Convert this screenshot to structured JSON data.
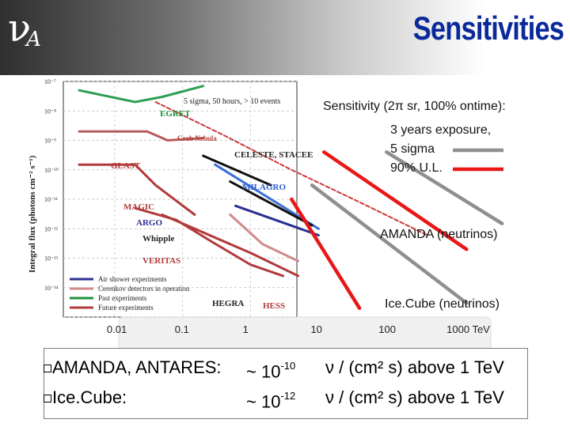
{
  "header": {
    "logo_symbol": "ν",
    "logo_subscript": "A",
    "title": "Sensitivities"
  },
  "chart_data": {
    "type": "line",
    "title": "",
    "xlabel": "",
    "ylabel": "Integral flux (photons cm⁻² s⁻¹)",
    "x_scale": "log",
    "y_scale": "log",
    "xlim": [
      0.003,
      10000
    ],
    "ylim": [
      1e-15,
      1e-07
    ],
    "x_ticks": [
      "0.01",
      "0.1",
      "1",
      "10",
      "100",
      "1000 TeV"
    ],
    "y_ticks": [
      "10⁻⁷",
      "10⁻⁸",
      "10⁻⁹",
      "10⁻¹⁰",
      "10⁻¹¹",
      "10⁻¹²",
      "10⁻¹³",
      "10⁻¹⁴"
    ],
    "inner_annotation": "5 sigma, 50 hours, > 10 events",
    "experiment_labels": [
      "EGRET",
      "Crab Nebula",
      "GLAST",
      "CELESTE, STACEE",
      "MILAGRO",
      "MAGIC",
      "ARGO",
      "Whipple",
      "VERITAS",
      "HEGRA",
      "HESS"
    ],
    "legend": [
      {
        "label": "Air shower experiments",
        "color": "#2b2f8f"
      },
      {
        "label": "Cerenkov detectors in operation",
        "color": "#d18a8a"
      },
      {
        "label": "Past experiments",
        "color": "#1f8f3a"
      },
      {
        "label": "Future experiments",
        "color": "#b23a3a"
      }
    ],
    "series": [
      {
        "name": "EGRET",
        "color": "#2e9e55",
        "x": [
          0.003,
          0.02,
          0.05,
          0.2
        ],
        "y": [
          5e-08,
          2e-08,
          3e-08,
          7e-08
        ]
      },
      {
        "name": "GLAST",
        "color": "#b85a5a",
        "x": [
          0.003,
          0.03,
          0.06,
          0.2
        ],
        "y": [
          2e-09,
          2e-09,
          1e-09,
          1.2e-09
        ]
      },
      {
        "name": "Crab Nebula",
        "color": "#cc3a3a",
        "x": [
          0.04,
          0.4,
          4,
          40,
          400
        ],
        "y": [
          2e-08,
          1.5e-09,
          1e-10,
          8e-12,
          6e-13
        ]
      },
      {
        "name": "CELESTE, STACEE",
        "color": "#111111",
        "x": [
          0.2,
          2
        ],
        "y": [
          3e-10,
          3e-11
        ]
      },
      {
        "name": "MILAGRO",
        "color": "#3a6fd6",
        "x": [
          0.3,
          10
        ],
        "y": [
          1.5e-10,
          1e-12
        ]
      },
      {
        "name": "MAGIC",
        "color": "#b23a3a",
        "x": [
          0.003,
          0.02,
          0.04,
          0.15
        ],
        "y": [
          1.5e-10,
          1.5e-10,
          3e-11,
          3e-12
        ]
      },
      {
        "name": "ARGO",
        "color": "#2b2f8f",
        "x": [
          0.6,
          10
        ],
        "y": [
          6e-12,
          6e-13
        ]
      },
      {
        "name": "Whipple",
        "color": "#111111",
        "x": [
          0.5,
          8
        ],
        "y": [
          4e-11,
          1.3e-12
        ]
      },
      {
        "name": "VERITAS",
        "color": "#b23a3a",
        "x": [
          0.02,
          0.08,
          0.25,
          1,
          3
        ],
        "y": [
          5e-12,
          2e-12,
          4e-13,
          6e-14,
          2.5e-14
        ]
      },
      {
        "name": "HEGRA",
        "color": "#d18a8a",
        "x": [
          0.5,
          1.5,
          5
        ],
        "y": [
          3e-12,
          3e-13,
          8e-14
        ]
      },
      {
        "name": "HESS",
        "color": "#b23a3a",
        "x": [
          0.05,
          0.15,
          1,
          5
        ],
        "y": [
          3e-12,
          1e-12,
          1.5e-13,
          2.5e-14
        ]
      }
    ],
    "overlay_lines": [
      {
        "name": "AMANDA 5 sigma",
        "color": "#8f8f8f",
        "x": [
          100,
          5000
        ],
        "y": [
          4e-10,
          1.5e-12
        ]
      },
      {
        "name": "AMANDA 90% U.L.",
        "color": "#e81818",
        "x": [
          12,
          1500
        ],
        "y": [
          4e-10,
          2e-13
        ]
      },
      {
        "name": "Ice.Cube 5 sigma",
        "color": "#8f8f8f",
        "x": [
          8,
          1500
        ],
        "y": [
          3e-11,
          3e-15
        ]
      },
      {
        "name": "Ice.Cube 90% U.L.",
        "color": "#e81818",
        "x": [
          4,
          40
        ],
        "y": [
          1e-11,
          2e-15
        ]
      }
    ],
    "overlay_legend": {
      "heading": "Sensitivity (2π sr, 100% ontime):",
      "line1": "3 years exposure,",
      "line2": "5 sigma",
      "line3": "90% U.L.",
      "color_5sigma": "#8f8f8f",
      "color_ul": "#e81818"
    },
    "overlay_labels": {
      "amanda": "AMANDA (neutrinos)",
      "icecube": "Ice.Cube (neutrinos)"
    }
  },
  "bullets": [
    {
      "label": "AMANDA, ANTARES:",
      "value_prefix": "~  10",
      "exponent": "-10",
      "unit": "ν / (cm² s) above 1 TeV"
    },
    {
      "label": "Ice.Cube:",
      "value_prefix": "~  10",
      "exponent": "-12",
      "unit": "ν / (cm² s) above 1 TeV"
    }
  ]
}
